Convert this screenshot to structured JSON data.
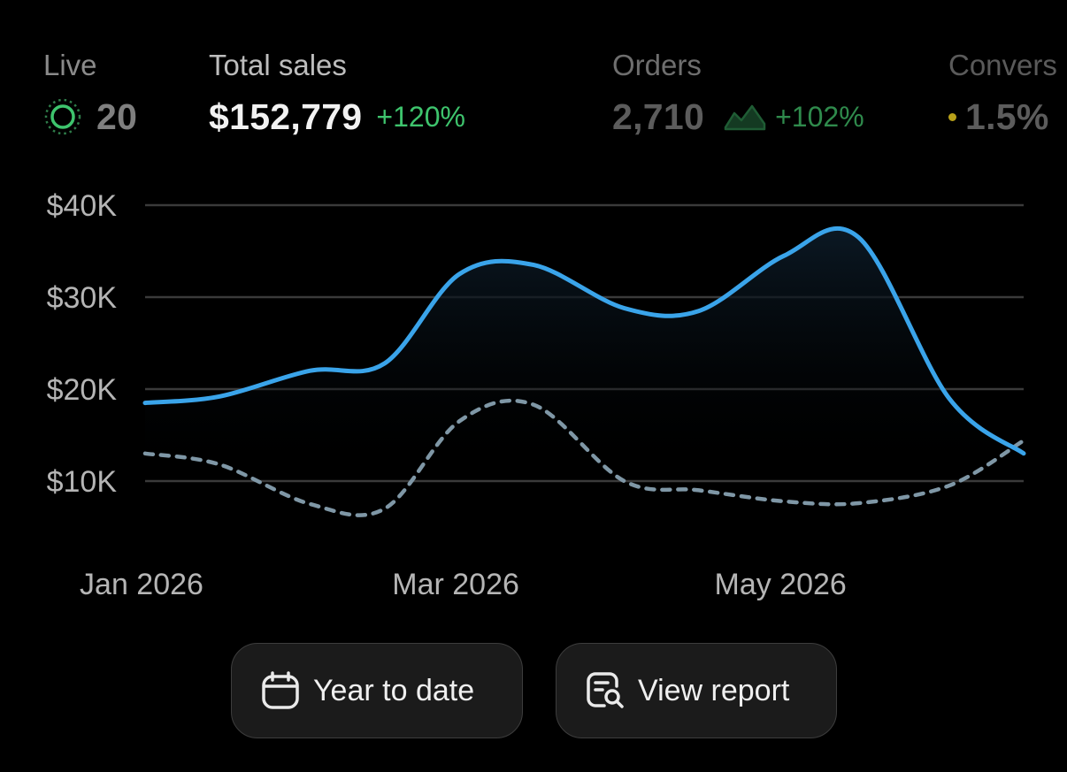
{
  "metrics": {
    "live": {
      "label": "Live",
      "value": "20",
      "icon": "live-pulse-icon"
    },
    "total_sales": {
      "label": "Total sales",
      "value": "$152,779",
      "change": "+120%"
    },
    "orders": {
      "label": "Orders",
      "value": "2,710",
      "change": "+102%",
      "icon": "sparkline-icon"
    },
    "conversion": {
      "label": "Convers",
      "value": "1.5%",
      "icon": "status-dot-icon"
    }
  },
  "colors": {
    "current_series": "#3aa4ea",
    "previous_series": "#7f97a6",
    "positive_change": "#3ec46d",
    "background": "#000000",
    "gridline": "#3a3a3a"
  },
  "chart_data": {
    "type": "line",
    "y_ticks": [
      "$40K",
      "$30K",
      "$20K",
      "$10K"
    ],
    "x_ticks": [
      "Jan 2026",
      "Mar 2026",
      "May 2026"
    ],
    "ylim": [
      0,
      40000
    ],
    "grid": true,
    "series": [
      {
        "style": "solid",
        "fill": "area",
        "x": [
          "2026-01-01",
          "2026-01-15",
          "2026-02-01",
          "2026-02-15",
          "2026-03-01",
          "2026-03-15",
          "2026-04-01",
          "2026-04-15",
          "2026-05-01",
          "2026-05-15",
          "2026-06-01",
          "2026-06-15"
        ],
        "values": [
          18500,
          19200,
          22000,
          22800,
          32500,
          33500,
          28800,
          28500,
          34500,
          36500,
          19000,
          13000
        ]
      },
      {
        "style": "dashed",
        "x": [
          "2026-01-01",
          "2026-01-15",
          "2026-02-01",
          "2026-02-15",
          "2026-03-01",
          "2026-03-15",
          "2026-04-01",
          "2026-04-15",
          "2026-05-01",
          "2026-05-15",
          "2026-06-01",
          "2026-06-15"
        ],
        "values": [
          13000,
          11800,
          7500,
          7000,
          16500,
          18300,
          10000,
          9000,
          7800,
          7600,
          9500,
          14400
        ]
      }
    ]
  },
  "buttons": {
    "year_to_date": {
      "label": "Year to date",
      "icon": "calendar-icon"
    },
    "view_report": {
      "label": "View report",
      "icon": "report-search-icon"
    }
  }
}
